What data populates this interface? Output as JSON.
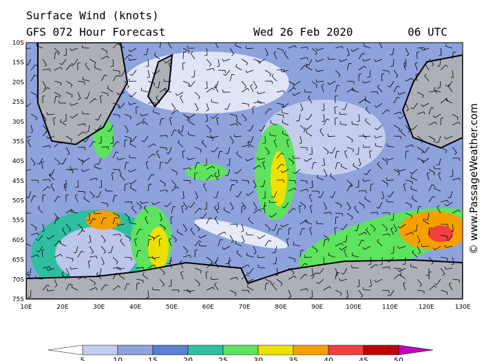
{
  "header": {
    "title": "Surface Wind (knots)",
    "subtitle": "GFS 072 Hour Forecast",
    "date": "Wed 26 Feb 2020",
    "time": "06 UTC"
  },
  "map": {
    "latitude_labels": [
      "10S",
      "15S",
      "20S",
      "25S",
      "30S",
      "35S",
      "40S",
      "45S",
      "50S",
      "55S",
      "60S",
      "65S",
      "70S",
      "75S"
    ],
    "longitude_labels": [
      "10E",
      "20E",
      "30E",
      "40E",
      "50E",
      "60E",
      "70E",
      "80E",
      "90E",
      "100E",
      "110E",
      "120E",
      "130E"
    ]
  },
  "colorbar": {
    "labels": [
      "5",
      "10",
      "15",
      "20",
      "25",
      "30",
      "35",
      "40",
      "45",
      "50"
    ]
  },
  "credit": "© www.PassageWeather.com"
}
